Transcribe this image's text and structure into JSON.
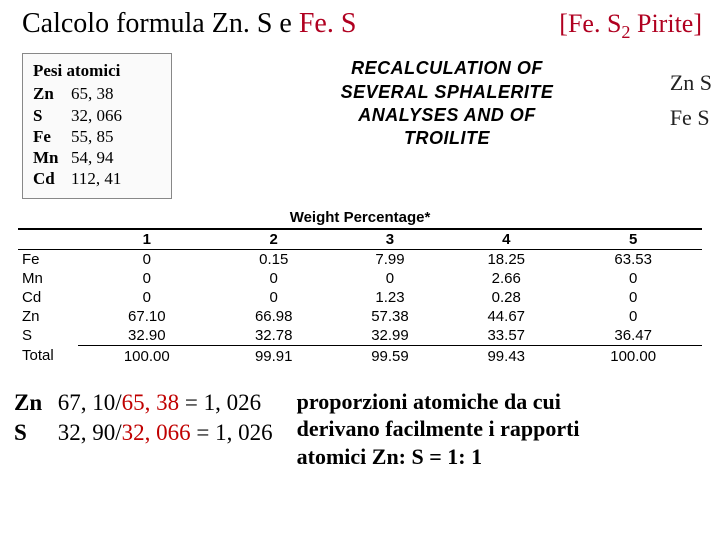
{
  "title": {
    "left_a": "Calcolo formula Zn. S e ",
    "left_b": "Fe. S",
    "right_a": "[Fe. S",
    "right_sub": "2",
    "right_b": "  Pirite]",
    "left_b_color": "#b00020",
    "right_color": "#b00020"
  },
  "atomic": {
    "header": "Pesi atomici",
    "rows": [
      {
        "sym": "Zn",
        "val": "65, 38"
      },
      {
        "sym": "S",
        "val": "32, 066"
      },
      {
        "sym": "Fe",
        "val": "55, 85"
      },
      {
        "sym": "Mn",
        "val": "54, 94"
      },
      {
        "sym": "Cd",
        "val": "112, 41"
      }
    ]
  },
  "recalc": {
    "l1": "RECALCULATION OF",
    "l2": "SEVERAL SPHALERITE",
    "l3": "ANALYSES AND OF",
    "l4": "TROILITE",
    "hand1": "Zn S",
    "hand2": "Fe S"
  },
  "weight_label": "Weight Percentage*",
  "table": {
    "headers": [
      "",
      "1",
      "2",
      "3",
      "4",
      "5"
    ],
    "rows": [
      {
        "lab": "Fe",
        "c": [
          "0",
          "0.15",
          "7.99",
          "18.25",
          "63.53"
        ]
      },
      {
        "lab": "Mn",
        "c": [
          "0",
          "0",
          "0",
          "2.66",
          "0"
        ]
      },
      {
        "lab": "Cd",
        "c": [
          "0",
          "0",
          "1.23",
          "0.28",
          "0"
        ]
      },
      {
        "lab": "Zn",
        "c": [
          "67.10",
          "66.98",
          "57.38",
          "44.67",
          "0"
        ]
      },
      {
        "lab": "S",
        "c": [
          "32.90",
          "32.78",
          "32.99",
          "33.57",
          "36.47"
        ]
      }
    ],
    "total_lab": "Total",
    "total": [
      "100.00",
      "99.91",
      "99.59",
      "99.43",
      "100.00"
    ]
  },
  "calc": {
    "l1_sym": "Zn",
    "l1_num": "67, 10/",
    "l1_den": "65, 38",
    "l1_rest": " =  1, 026",
    "l2_sym": "S",
    "l2_num": "32, 90/",
    "l2_den": "32, 066",
    "l2_rest": " = 1, 026"
  },
  "notes": {
    "l1": "proporzioni atomiche da cui",
    "l2": "derivano facilmente i rapporti",
    "l3": "atomici  Zn: S = 1: 1"
  }
}
